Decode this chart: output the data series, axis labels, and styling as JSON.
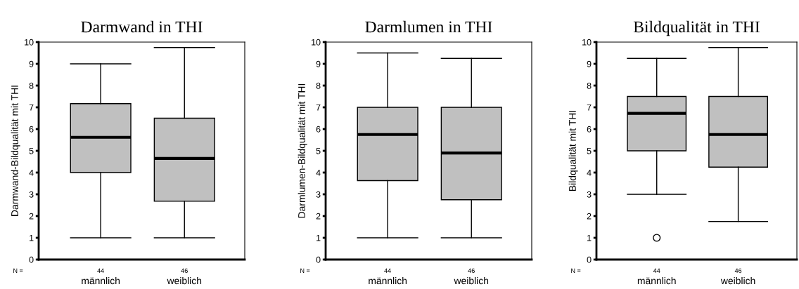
{
  "chart_data": [
    {
      "type": "box",
      "title": "Darmwand in THI",
      "ylabel": "Darmwand-Bildqualität mit THI",
      "categories": [
        "männlich",
        "weiblich"
      ],
      "color": "#c0c0c0",
      "ylim": [
        0,
        10
      ],
      "yticks": [
        0,
        1,
        2,
        3,
        4,
        5,
        6,
        7,
        8,
        9,
        10
      ],
      "grid": false,
      "annotations": [
        "N =",
        "44",
        "46"
      ],
      "boxes": [
        {
          "low": 1,
          "q1": 4,
          "median": 5.62,
          "q3": 7.17,
          "high": 9
        },
        {
          "low": 1,
          "q1": 2.68,
          "median": 4.65,
          "q3": 6.5,
          "high": 9.75
        }
      ]
    },
    {
      "type": "box",
      "title": "Darmlumen in THI",
      "ylabel": "Darmlumen-Bildqualität mit THI",
      "categories": [
        "männlich",
        "weiblich"
      ],
      "color": "#c0c0c0",
      "ylim": [
        0,
        10
      ],
      "yticks": [
        0,
        1,
        2,
        3,
        4,
        5,
        6,
        7,
        8,
        9,
        10
      ],
      "grid": false,
      "annotations": [
        "N =",
        "44",
        "46"
      ],
      "boxes": [
        {
          "low": 1,
          "q1": 3.63,
          "median": 5.75,
          "q3": 7,
          "high": 9.5
        },
        {
          "low": 1,
          "q1": 2.75,
          "median": 4.9,
          "q3": 7,
          "high": 9.25
        }
      ]
    },
    {
      "type": "box",
      "title": "Bildqualität in THI",
      "ylabel": "Bildqualität mit THI",
      "categories": [
        "männlich",
        "weiblich"
      ],
      "color": "#c0c0c0",
      "ylim": [
        0,
        10
      ],
      "yticks": [
        0,
        1,
        2,
        3,
        4,
        5,
        6,
        7,
        8,
        9,
        10
      ],
      "grid": false,
      "annotations": [
        "N =",
        "44",
        "46"
      ],
      "boxes": [
        {
          "low": 3,
          "q1": 5,
          "median": 6.72,
          "q3": 7.5,
          "high": 9.25,
          "outliers": [
            1
          ]
        },
        {
          "low": 1.75,
          "q1": 4.25,
          "median": 5.75,
          "q3": 7.5,
          "high": 9.75
        }
      ]
    }
  ]
}
